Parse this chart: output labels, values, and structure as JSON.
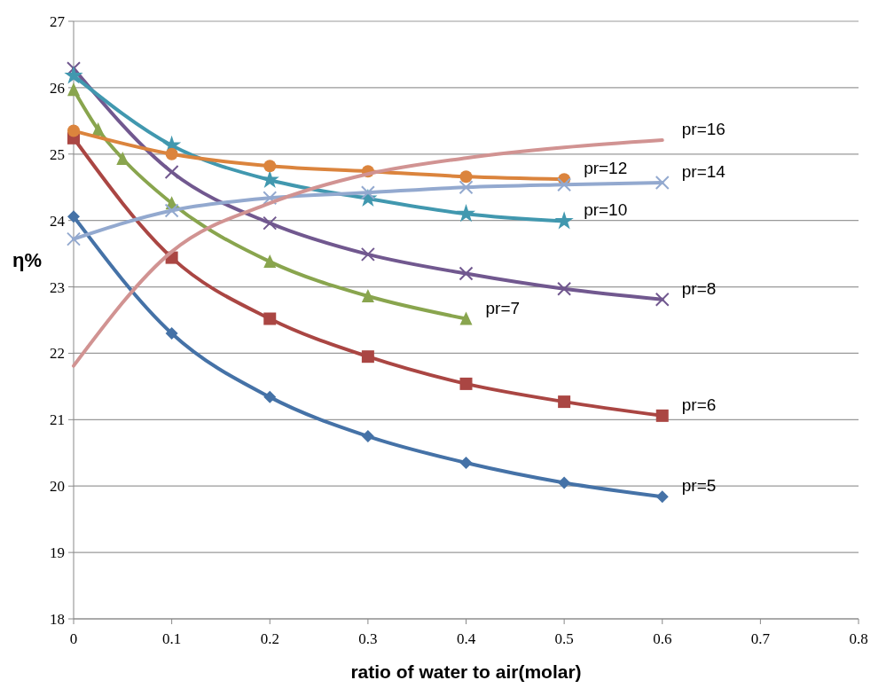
{
  "chart_data": {
    "type": "line",
    "xlabel": "ratio of water to air(molar)",
    "ylabel": "η%",
    "xlim": [
      0,
      0.8
    ],
    "xticks": [
      0,
      0.1,
      0.2,
      0.3,
      0.4,
      0.5,
      0.6,
      0.7,
      0.8
    ],
    "ylim": [
      18,
      27
    ],
    "yticks": [
      18,
      19,
      20,
      21,
      22,
      23,
      24,
      25,
      26,
      27
    ],
    "grid": "y",
    "legend": false,
    "series": [
      {
        "name": "pr=5",
        "color": "#4572a7",
        "marker": "diamond",
        "x": [
          0,
          0.1,
          0.2,
          0.3,
          0.4,
          0.5,
          0.6
        ],
        "values": [
          24.06,
          22.3,
          21.34,
          20.75,
          20.35,
          20.05,
          19.84
        ]
      },
      {
        "name": "pr=6",
        "color": "#aa4643",
        "marker": "square",
        "x": [
          0,
          0.1,
          0.2,
          0.3,
          0.4,
          0.5,
          0.6
        ],
        "values": [
          25.24,
          23.44,
          22.52,
          21.95,
          21.54,
          21.27,
          21.06
        ]
      },
      {
        "name": "pr=7",
        "color": "#89a54e",
        "marker": "triangle",
        "x": [
          0,
          0.025,
          0.05,
          0.1,
          0.2,
          0.3,
          0.4
        ],
        "values": [
          25.97,
          25.37,
          24.93,
          24.26,
          23.38,
          22.86,
          22.52
        ]
      },
      {
        "name": "pr=8",
        "color": "#71588f",
        "marker": "cross",
        "x": [
          0,
          0.1,
          0.2,
          0.3,
          0.4,
          0.5,
          0.6
        ],
        "values": [
          26.29,
          24.73,
          23.96,
          23.49,
          23.2,
          22.97,
          22.81
        ]
      },
      {
        "name": "pr=10",
        "color": "#4198af",
        "marker": "star",
        "x": [
          0,
          0.1,
          0.2,
          0.3,
          0.4,
          0.5
        ],
        "values": [
          26.18,
          25.13,
          24.61,
          24.33,
          24.1,
          23.99
        ]
      },
      {
        "name": "pr=12",
        "color": "#db843d",
        "marker": "circle",
        "x": [
          0,
          0.1,
          0.2,
          0.3,
          0.4,
          0.5
        ],
        "values": [
          25.35,
          25.0,
          24.82,
          24.74,
          24.66,
          24.62
        ]
      },
      {
        "name": "pr=14",
        "color": "#93a9cf",
        "marker": "cross",
        "x": [
          0,
          0.1,
          0.2,
          0.3,
          0.4,
          0.5,
          0.6
        ],
        "values": [
          23.72,
          24.15,
          24.34,
          24.42,
          24.5,
          24.54,
          24.57
        ]
      },
      {
        "name": "pr=16",
        "color": "#d19392",
        "marker": "none",
        "x": [
          0,
          0.1,
          0.2,
          0.3,
          0.4,
          0.5,
          0.6
        ],
        "values": [
          21.81,
          23.53,
          24.26,
          24.7,
          24.94,
          25.1,
          25.21
        ]
      }
    ]
  }
}
